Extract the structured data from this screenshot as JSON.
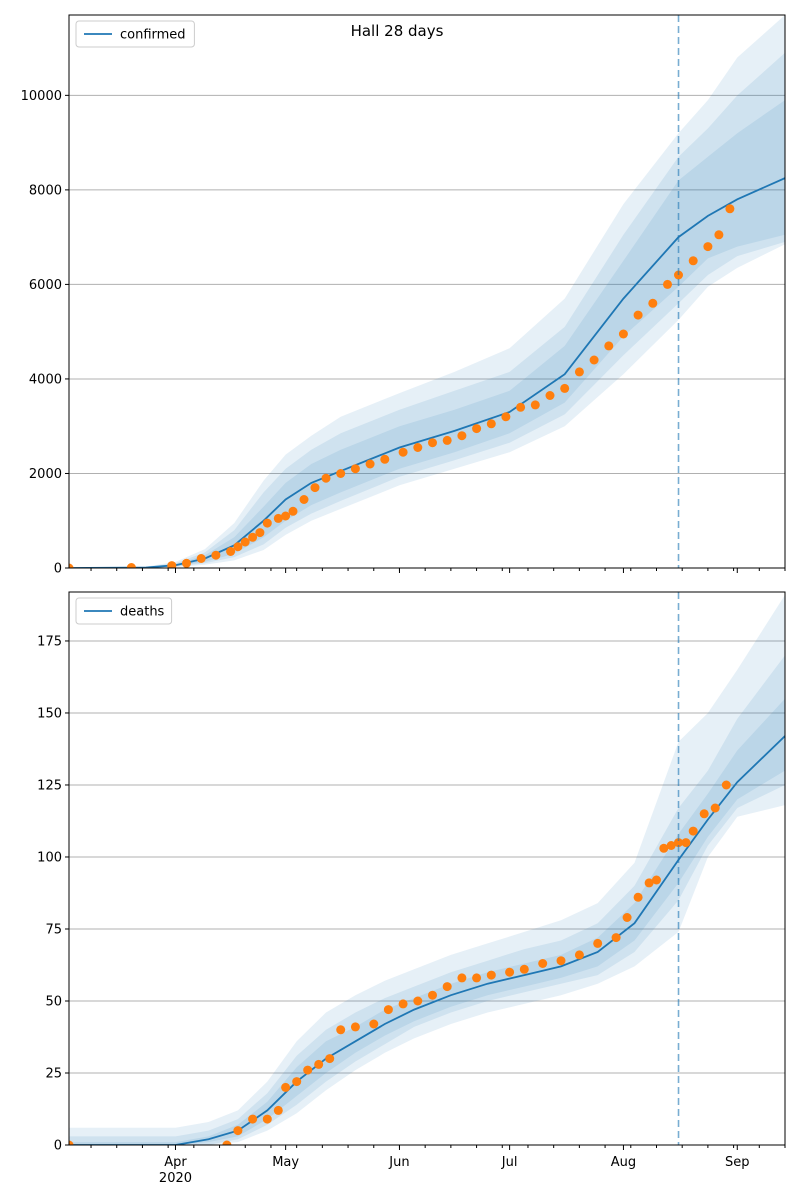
{
  "title": "Hall 28 days",
  "colors": {
    "line": "#1f77b4",
    "points": "#ff7f0e",
    "band": "#1f77b4",
    "grid": "#b0b0b0"
  },
  "chart_data": [
    {
      "type": "line",
      "legend": "confirmed",
      "legend_position": "top-left",
      "grid": "horizontal",
      "xlim": [
        "2020-03-03",
        "2020-09-14"
      ],
      "x_ticks": [
        {
          "date": "2020-04-01",
          "label": "Apr"
        },
        {
          "date": "2020-05-01",
          "label": "May"
        },
        {
          "date": "2020-06-01",
          "label": "Jun"
        },
        {
          "date": "2020-07-01",
          "label": "Jul"
        },
        {
          "date": "2020-08-01",
          "label": "Aug"
        },
        {
          "date": "2020-09-01",
          "label": "Sep"
        }
      ],
      "x_year_label": "2020",
      "ylim": [
        0,
        11700
      ],
      "y_ticks": [
        0,
        2000,
        4000,
        6000,
        8000,
        10000
      ],
      "vline_date": "2020-08-16",
      "model": {
        "x": [
          "2020-03-03",
          "2020-03-24",
          "2020-04-01",
          "2020-04-09",
          "2020-04-17",
          "2020-04-25",
          "2020-05-01",
          "2020-05-08",
          "2020-05-16",
          "2020-06-01",
          "2020-06-16",
          "2020-07-01",
          "2020-07-16",
          "2020-08-01",
          "2020-08-16",
          "2020-08-24",
          "2020-09-01",
          "2020-09-14"
        ],
        "median": [
          0,
          10,
          60,
          200,
          480,
          1000,
          1450,
          1800,
          2050,
          2550,
          2900,
          3300,
          4100,
          5700,
          7000,
          7450,
          7800,
          8250
        ],
        "bands": [
          {
            "lo": [
              0,
              0,
              40,
              130,
              300,
              650,
              1000,
              1330,
              1600,
              2100,
              2450,
              2850,
              3500,
              4900,
              5950,
              6550,
              6800,
              7050
            ],
            "hi": [
              0,
              15,
              80,
              270,
              650,
              1300,
              1800,
              2200,
              2500,
              3000,
              3350,
              3750,
              4700,
              6500,
              8200,
              8700,
              9200,
              9900
            ]
          },
          {
            "lo": [
              0,
              0,
              30,
              100,
              230,
              500,
              850,
              1150,
              1420,
              1930,
              2280,
              2650,
              3250,
              4500,
              5600,
              6200,
              6600,
              6900
            ],
            "hi": [
              0,
              20,
              100,
              330,
              800,
              1600,
              2100,
              2500,
              2850,
              3350,
              3750,
              4150,
              5100,
              7050,
              8700,
              9300,
              10000,
              10900
            ]
          },
          {
            "lo": [
              0,
              0,
              20,
              70,
              160,
              380,
              700,
              1000,
              1250,
              1750,
              2100,
              2450,
              3000,
              4100,
              5250,
              5950,
              6350,
              6850
            ],
            "hi": [
              0,
              30,
              130,
              400,
              950,
              1850,
              2400,
              2800,
              3200,
              3700,
              4150,
              4650,
              5700,
              7700,
              9200,
              9900,
              10800,
              11700
            ]
          }
        ]
      },
      "observed": {
        "x": [
          "2020-03-03",
          "2020-03-20",
          "2020-03-31",
          "2020-04-04",
          "2020-04-08",
          "2020-04-12",
          "2020-04-16",
          "2020-04-18",
          "2020-04-20",
          "2020-04-22",
          "2020-04-24",
          "2020-04-26",
          "2020-04-29",
          "2020-05-01",
          "2020-05-03",
          "2020-05-06",
          "2020-05-09",
          "2020-05-12",
          "2020-05-16",
          "2020-05-20",
          "2020-05-24",
          "2020-05-28",
          "2020-06-02",
          "2020-06-06",
          "2020-06-10",
          "2020-06-14",
          "2020-06-18",
          "2020-06-22",
          "2020-06-26",
          "2020-06-30",
          "2020-07-04",
          "2020-07-08",
          "2020-07-12",
          "2020-07-16",
          "2020-07-20",
          "2020-07-24",
          "2020-07-28",
          "2020-08-01",
          "2020-08-05",
          "2020-08-09",
          "2020-08-13",
          "2020-08-16",
          "2020-08-20",
          "2020-08-24",
          "2020-08-27",
          "2020-08-30"
        ],
        "y": [
          0,
          10,
          50,
          100,
          200,
          270,
          350,
          450,
          550,
          650,
          750,
          950,
          1050,
          1100,
          1200,
          1450,
          1700,
          1900,
          2000,
          2100,
          2200,
          2300,
          2450,
          2550,
          2650,
          2700,
          2800,
          2950,
          3050,
          3200,
          3400,
          3450,
          3650,
          3800,
          4150,
          4400,
          4700,
          4950,
          5350,
          5600,
          6000,
          6200,
          6500,
          6800,
          7050,
          7600
        ]
      }
    },
    {
      "type": "line",
      "legend": "deaths",
      "legend_position": "top-left",
      "grid": "horizontal",
      "xlim": [
        "2020-03-03",
        "2020-09-14"
      ],
      "x_ticks": [
        {
          "date": "2020-04-01",
          "label": "Apr"
        },
        {
          "date": "2020-05-01",
          "label": "May"
        },
        {
          "date": "2020-06-01",
          "label": "Jun"
        },
        {
          "date": "2020-07-01",
          "label": "Jul"
        },
        {
          "date": "2020-08-01",
          "label": "Aug"
        },
        {
          "date": "2020-09-01",
          "label": "Sep"
        }
      ],
      "x_year_label": "2020",
      "ylim": [
        0,
        192
      ],
      "y_ticks": [
        0,
        25,
        50,
        75,
        100,
        125,
        150,
        175
      ],
      "vline_date": "2020-08-16",
      "model": {
        "x": [
          "2020-03-03",
          "2020-04-01",
          "2020-04-10",
          "2020-04-18",
          "2020-04-26",
          "2020-05-04",
          "2020-05-12",
          "2020-05-20",
          "2020-05-28",
          "2020-06-05",
          "2020-06-15",
          "2020-06-25",
          "2020-07-05",
          "2020-07-15",
          "2020-07-25",
          "2020-08-04",
          "2020-08-16",
          "2020-08-24",
          "2020-09-01",
          "2020-09-14"
        ],
        "median": [
          0,
          0,
          2,
          5,
          12,
          22,
          30,
          36,
          42,
          47,
          52,
          56,
          59,
          62,
          67,
          77,
          99,
          113,
          126,
          142
        ],
        "bands": [
          {
            "lo": [
              0,
              0,
              1,
              3,
              9,
              17,
              25,
              32,
              38,
              43,
              48,
              52,
              55,
              58,
              62,
              71,
              91,
              107,
              120,
              130
            ],
            "hi": [
              1,
              1,
              3,
              7,
              15,
              27,
              36,
              41,
              47,
              51,
              56,
              60,
              63,
              66,
              72,
              84,
              108,
              122,
              137,
              155
            ]
          },
          {
            "lo": [
              0,
              0,
              0,
              2,
              7,
              14,
              22,
              29,
              35,
              41,
              46,
              50,
              53,
              56,
              59,
              67,
              85,
              104,
              117,
              125
            ],
            "hi": [
              3,
              3,
              5,
              9,
              18,
              31,
              40,
              46,
              51,
              55,
              60,
              64,
              68,
              71,
              77,
              90,
              117,
              130,
              148,
              170
            ]
          },
          {
            "lo": [
              0,
              0,
              0,
              1,
              5,
              11,
              19,
              26,
              32,
              37,
              42,
              46,
              49,
              52,
              56,
              62,
              74,
              100,
              114,
              118
            ],
            "hi": [
              6,
              6,
              8,
              12,
              22,
              36,
              46,
              52,
              57,
              61,
              66,
              70,
              74,
              78,
              84,
              98,
              140,
              150,
              165,
              191
            ]
          }
        ]
      },
      "observed": {
        "x": [
          "2020-03-03",
          "2020-04-15",
          "2020-04-18",
          "2020-04-22",
          "2020-04-26",
          "2020-04-29",
          "2020-05-01",
          "2020-05-04",
          "2020-05-07",
          "2020-05-10",
          "2020-05-13",
          "2020-05-16",
          "2020-05-20",
          "2020-05-25",
          "2020-05-29",
          "2020-06-02",
          "2020-06-06",
          "2020-06-10",
          "2020-06-14",
          "2020-06-18",
          "2020-06-22",
          "2020-06-26",
          "2020-07-01",
          "2020-07-05",
          "2020-07-10",
          "2020-07-15",
          "2020-07-20",
          "2020-07-25",
          "2020-07-30",
          "2020-08-02",
          "2020-08-05",
          "2020-08-08",
          "2020-08-10",
          "2020-08-12",
          "2020-08-14",
          "2020-08-16",
          "2020-08-18",
          "2020-08-20",
          "2020-08-23",
          "2020-08-26",
          "2020-08-29"
        ],
        "y": [
          0,
          0,
          5,
          9,
          9,
          12,
          20,
          22,
          26,
          28,
          30,
          40,
          41,
          42,
          47,
          49,
          50,
          52,
          55,
          58,
          58,
          59,
          60,
          61,
          63,
          64,
          66,
          70,
          72,
          79,
          86,
          91,
          92,
          103,
          104,
          105,
          105,
          109,
          115,
          117,
          125
        ]
      }
    }
  ]
}
